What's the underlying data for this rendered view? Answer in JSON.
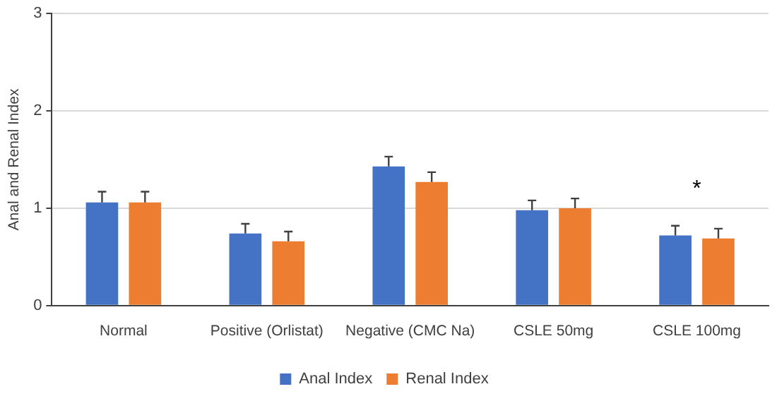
{
  "chart_data": {
    "type": "bar",
    "ylabel": "Anal and Renal Index",
    "categories": [
      "Normal",
      "Positive (Orlistat)",
      "Negative (CMC Na)",
      "CSLE 50mg",
      "CSLE 100mg"
    ],
    "series": [
      {
        "name": "Anal Index",
        "color": "#4472c4",
        "values": [
          1.06,
          0.74,
          1.43,
          0.98,
          0.72
        ],
        "errors": [
          [
            1.06,
            1.17
          ],
          [
            0.74,
            0.84
          ],
          [
            1.43,
            1.53
          ],
          [
            0.98,
            1.08
          ],
          [
            0.72,
            0.82
          ]
        ]
      },
      {
        "name": "Renal Index",
        "color": "#ed7d31",
        "values": [
          1.06,
          0.66,
          1.27,
          1.0,
          0.69
        ],
        "errors": [
          [
            1.06,
            1.17
          ],
          [
            0.66,
            0.76
          ],
          [
            1.27,
            1.37
          ],
          [
            1.0,
            1.1
          ],
          [
            0.69,
            0.79
          ]
        ]
      }
    ],
    "ylim": [
      0,
      3
    ],
    "yticks": [
      0,
      1,
      2,
      3
    ],
    "grid": "y",
    "legend": "bottom",
    "annotations": [
      "*"
    ]
  }
}
